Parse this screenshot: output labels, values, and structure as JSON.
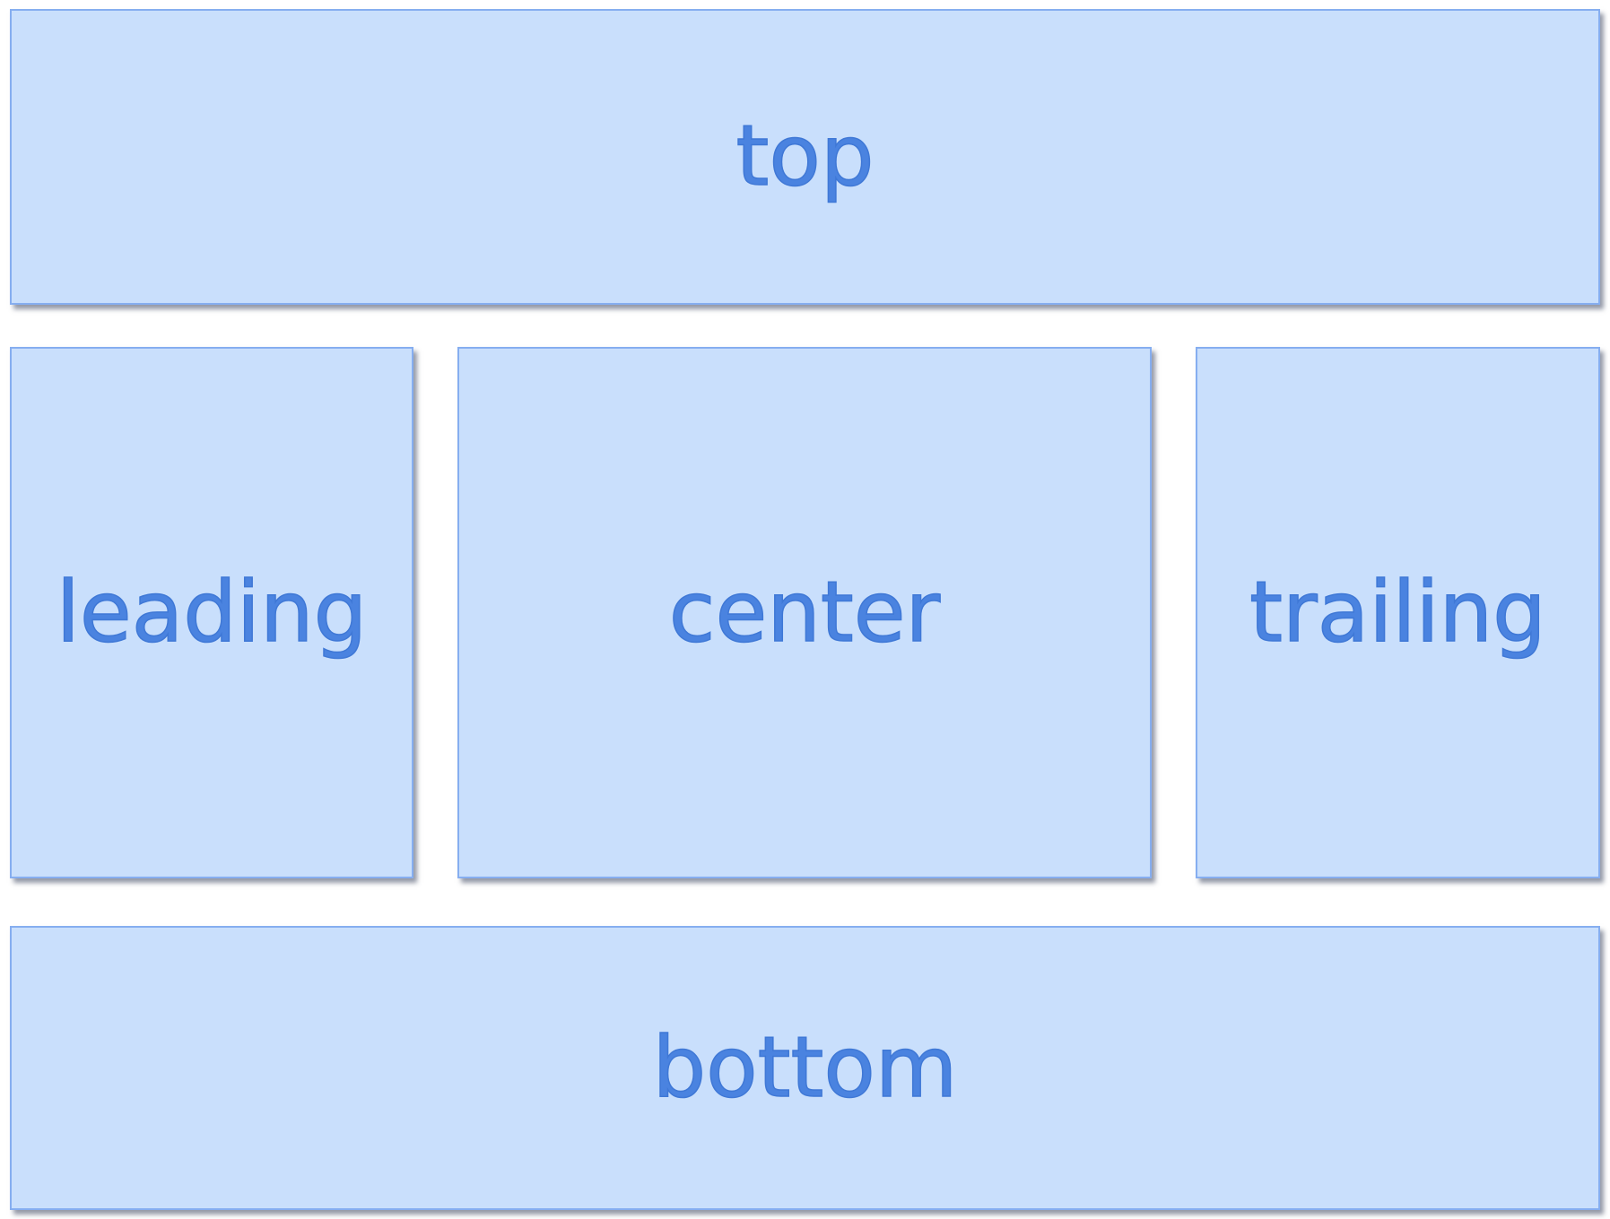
{
  "layout": {
    "top": {
      "label": "top"
    },
    "leading": {
      "label": "leading"
    },
    "center": {
      "label": "center"
    },
    "trailing": {
      "label": "trailing"
    },
    "bottom": {
      "label": "bottom"
    }
  },
  "colors": {
    "region_fill": "#c9dffc",
    "region_border": "#86aef0",
    "label_text": "#4a83e0"
  }
}
